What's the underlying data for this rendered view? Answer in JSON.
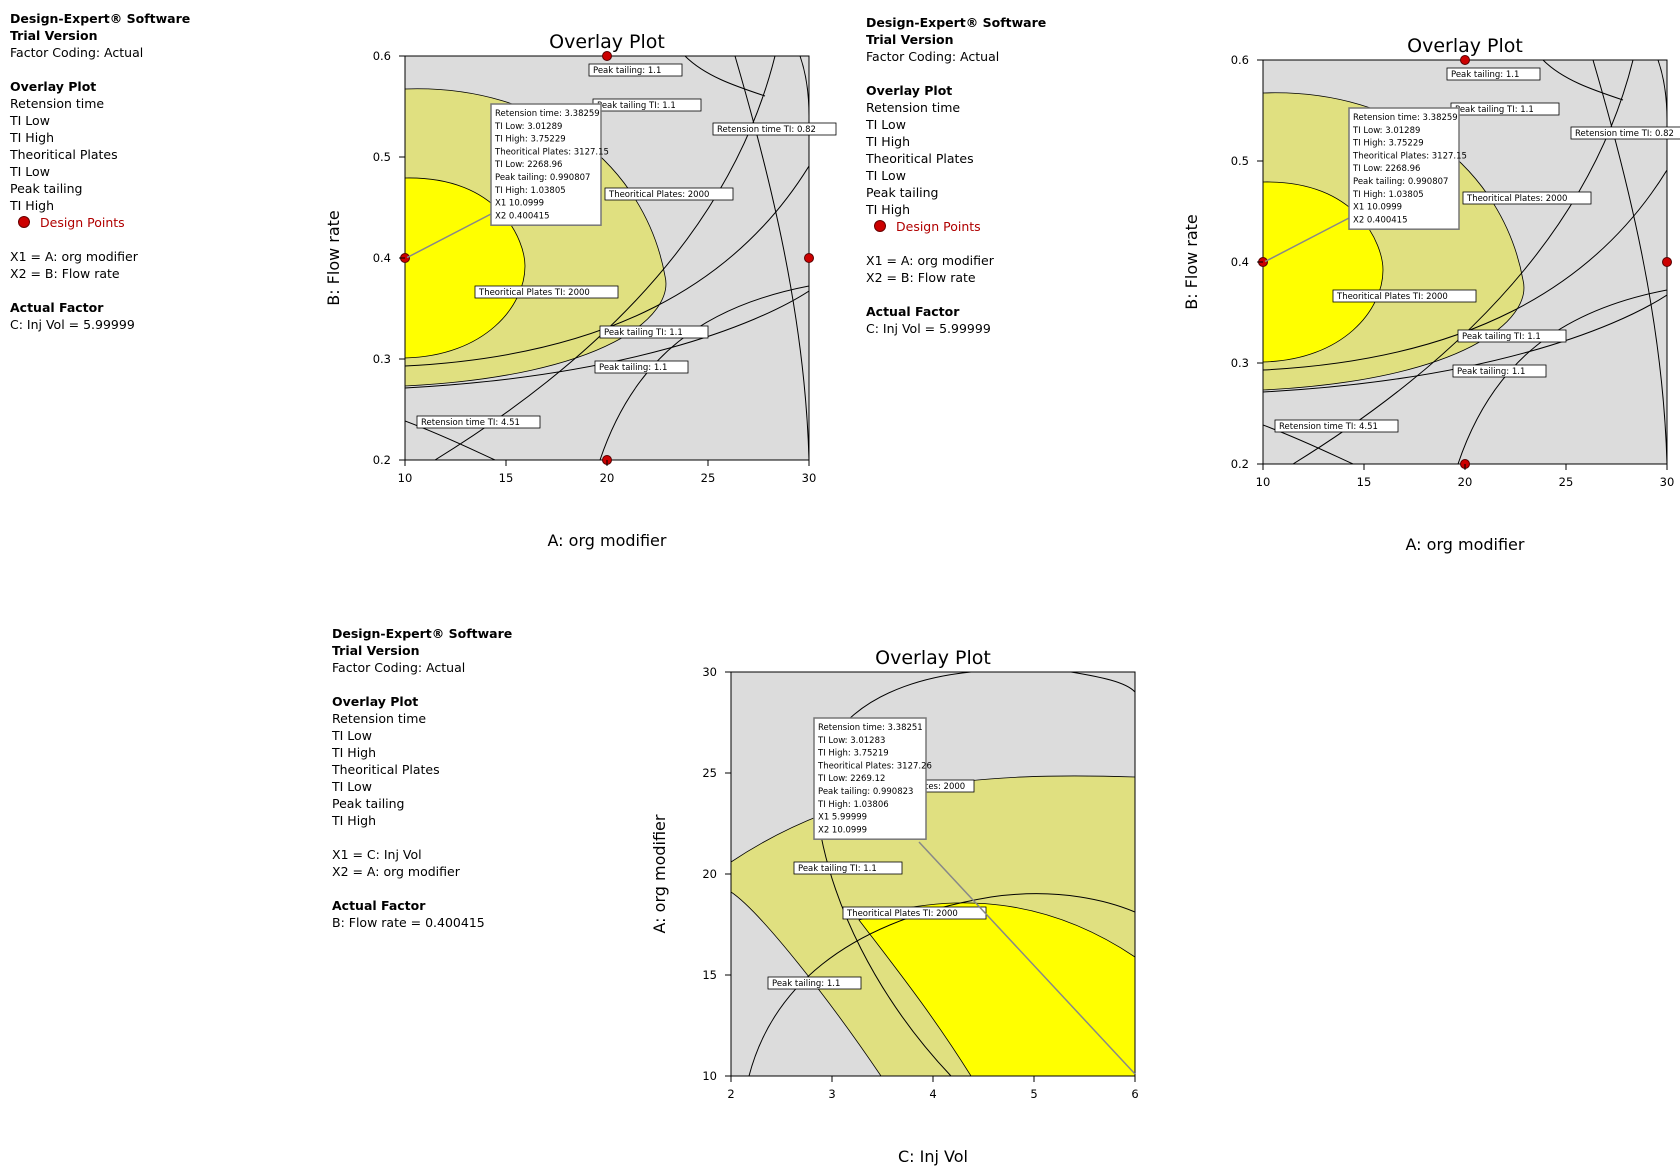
{
  "panels": [
    {
      "info": {
        "software": "Design-Expert® Software",
        "version": "Trial Version",
        "coding": "Factor Coding: Actual",
        "section_title": "Overlay Plot",
        "responses": [
          "Retension time",
          "TI Low",
          "TI High",
          "Theoritical Plates",
          "TI Low",
          "Peak tailing",
          "TI High"
        ],
        "design_points_label": "Design Points",
        "x1_line": "X1 = A: org modifier",
        "x2_line": "X2 = B: Flow rate",
        "actual_factor_title": "Actual Factor",
        "actual_factor_value": "C: Inj Vol = 5.99999"
      },
      "chart": {
        "title": "Overlay Plot",
        "xlabel": "A: org modifier",
        "ylabel": "B: Flow rate",
        "xticks": [
          "10",
          "15",
          "20",
          "25",
          "30"
        ],
        "yticks": [
          "0.2",
          "0.3",
          "0.4",
          "0.5",
          "0.6"
        ],
        "contour_labels": [
          "Peak tailing: 1.1",
          "Peak tailing TI: 1.1",
          "Retension time TI: 0.82",
          "Theoritical Plates: 2000",
          "Theoritical Plates TI: 2000",
          "Peak tailing TI: 1.1",
          "Peak tailing: 1.1",
          "Retension time TI: 4.51"
        ],
        "tooltip": [
          "Retension time:   3.38259",
          "  TI Low:   3.01289",
          "  TI High:   3.75229",
          "Theoritical Plates:   3127.15",
          "  TI Low:   2268.96",
          "Peak tailing:   0.990807",
          "  TI High:    1.03805",
          "X1  10.0999",
          "X2  0.400415"
        ]
      }
    },
    {
      "info": {
        "software": "Design-Expert® Software",
        "version": "Trial Version",
        "coding": "Factor Coding: Actual",
        "section_title": "Overlay Plot",
        "responses": [
          "Retension time",
          "TI Low",
          "TI High",
          "Theoritical Plates",
          "TI Low",
          "Peak tailing",
          "TI High"
        ],
        "design_points_label": "Design Points",
        "x1_line": "X1 = A: org modifier",
        "x2_line": "X2 = B: Flow rate",
        "actual_factor_title": "Actual Factor",
        "actual_factor_value": "C: Inj Vol = 5.99999"
      },
      "chart": {
        "title": "Overlay Plot",
        "xlabel": "A: org modifier",
        "ylabel": "B: Flow rate",
        "xticks": [
          "10",
          "15",
          "20",
          "25",
          "30"
        ],
        "yticks": [
          "0.2",
          "0.3",
          "0.4",
          "0.5",
          "0.6"
        ],
        "contour_labels": [
          "Peak tailing: 1.1",
          "Peak tailing TI: 1.1",
          "Retension time TI: 0.82",
          "Theoritical Plates: 2000",
          "Theoritical Plates TI: 2000",
          "Peak tailing TI: 1.1",
          "Peak tailing: 1.1",
          "Retension time TI: 4.51"
        ],
        "tooltip": [
          "Retension time:   3.38259",
          "  TI Low:   3.01289",
          "  TI High:   3.75229",
          "Theoritical Plates:   3127.15",
          "  TI Low:   2268.96",
          "Peak tailing:   0.990807",
          "  TI High:    1.03805",
          "X1  10.0999",
          "X2  0.400415"
        ]
      }
    },
    {
      "info": {
        "software": "Design-Expert® Software",
        "version": "Trial Version",
        "coding": "Factor Coding: Actual",
        "section_title": "Overlay Plot",
        "responses": [
          "Retension time",
          "TI Low",
          "TI High",
          "Theoritical Plates",
          "TI Low",
          "Peak tailing",
          "TI High"
        ],
        "x1_line": "X1 = C: Inj Vol",
        "x2_line": "X2 = A: org modifier",
        "actual_factor_title": "Actual Factor",
        "actual_factor_value": "B: Flow rate = 0.400415"
      },
      "chart": {
        "title": "Overlay Plot",
        "xlabel": "C: Inj Vol",
        "ylabel": "A: org modifier",
        "xticks": [
          "2",
          "3",
          "4",
          "5",
          "6"
        ],
        "yticks": [
          "10",
          "15",
          "20",
          "25",
          "30"
        ],
        "contour_labels": [
          "tes: 2000",
          "Peak tailing TI: 1.1",
          "Theoritical Plates TI: 2000",
          "Peak tailing: 1.1"
        ],
        "tooltip": [
          "Retension time:   3.38251",
          "  TI Low:   3.01283",
          "  TI High:   3.75219",
          "Theoritical Plates:   3127.26",
          "  TI Low:   2269.12",
          "Peak tailing:   0.990823",
          "  TI High:   1.03806",
          "X1  5.99999",
          "X2  10.0999"
        ]
      }
    }
  ],
  "chart_data": [
    {
      "type": "contour",
      "title": "Overlay Plot",
      "xlabel": "A: org modifier",
      "ylabel": "B: Flow rate",
      "xlim": [
        10,
        30
      ],
      "ylim": [
        0.2,
        0.6
      ],
      "design_points": [
        [
          20,
          0.6
        ],
        [
          10,
          0.4
        ],
        [
          30,
          0.4
        ],
        [
          20,
          0.2
        ]
      ],
      "flag_point": {
        "x": 10.0999,
        "y": 0.400415
      },
      "colors": {
        "feasible_region": "#ffff00",
        "partial_region": "#e0e080",
        "infeasible_region": "#dcdcdc"
      }
    },
    {
      "type": "contour",
      "title": "Overlay Plot",
      "xlabel": "A: org modifier",
      "ylabel": "B: Flow rate",
      "xlim": [
        10,
        30
      ],
      "ylim": [
        0.2,
        0.6
      ],
      "design_points": [
        [
          20,
          0.6
        ],
        [
          10,
          0.4
        ],
        [
          30,
          0.4
        ],
        [
          20,
          0.2
        ]
      ],
      "flag_point": {
        "x": 10.0999,
        "y": 0.400415
      },
      "colors": {
        "feasible_region": "#ffff00",
        "partial_region": "#e0e080",
        "infeasible_region": "#dcdcdc"
      }
    },
    {
      "type": "contour",
      "title": "Overlay Plot",
      "xlabel": "C: Inj Vol",
      "ylabel": "A: org modifier",
      "xlim": [
        2,
        6
      ],
      "ylim": [
        10,
        30
      ],
      "design_points": [],
      "flag_point": {
        "x": 5.99999,
        "y": 10.0999
      },
      "colors": {
        "feasible_region": "#ffff00",
        "partial_region": "#e0e080",
        "infeasible_region": "#dcdcdc"
      }
    }
  ]
}
